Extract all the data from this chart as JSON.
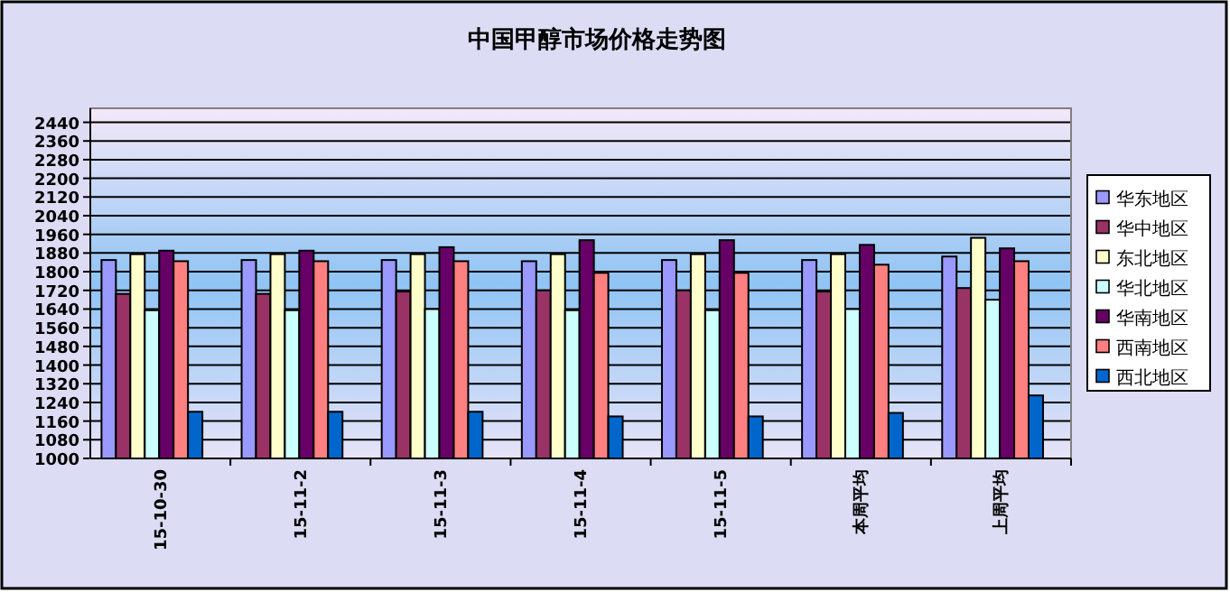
{
  "chart_data": {
    "type": "bar",
    "title": "中国甲醇市场价格走势图",
    "categories": [
      "15-10-30",
      "15-11-2",
      "15-11-3",
      "15-11-4",
      "15-11-5",
      "本周平均",
      "上周平均"
    ],
    "series": [
      {
        "name": "华东地区",
        "color": "#9999ff",
        "values": [
          1850,
          1850,
          1850,
          1845,
          1850,
          1850,
          1865
        ]
      },
      {
        "name": "华中地区",
        "color": "#993366",
        "values": [
          1705,
          1705,
          1715,
          1720,
          1720,
          1715,
          1730
        ]
      },
      {
        "name": "东北地区",
        "color": "#ffffcc",
        "values": [
          1875,
          1875,
          1875,
          1875,
          1875,
          1875,
          1945
        ]
      },
      {
        "name": "华北地区",
        "color": "#ccffff",
        "values": [
          1635,
          1635,
          1640,
          1635,
          1635,
          1640,
          1680
        ]
      },
      {
        "name": "华南地区",
        "color": "#660066",
        "values": [
          1890,
          1890,
          1905,
          1935,
          1935,
          1915,
          1900
        ]
      },
      {
        "name": "西南地区",
        "color": "#ff8080",
        "values": [
          1845,
          1845,
          1845,
          1795,
          1795,
          1830,
          1845
        ]
      },
      {
        "name": "西北地区",
        "color": "#0066cc",
        "values": [
          1200,
          1200,
          1200,
          1180,
          1180,
          1195,
          1270
        ]
      }
    ],
    "ylim": [
      1000,
      2500
    ],
    "yticks": [
      1000,
      1080,
      1160,
      1240,
      1320,
      1400,
      1480,
      1560,
      1640,
      1720,
      1800,
      1880,
      1960,
      2040,
      2120,
      2200,
      2280,
      2360,
      2440
    ],
    "grid": "y",
    "legend": "right"
  }
}
